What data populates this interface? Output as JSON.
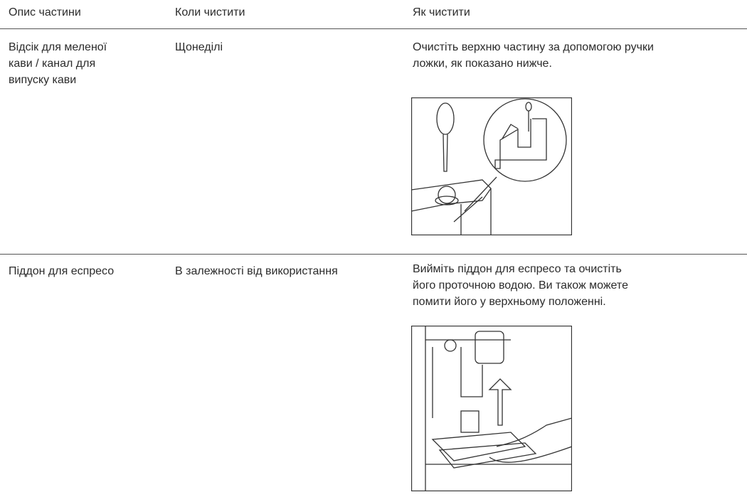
{
  "table": {
    "header": [
      "Опис частини",
      "Коли чистити",
      "Як чистити"
    ],
    "rows": [
      {
        "part": [
          "Відсік для меленої",
          "кави / канал для",
          "випуску кави"
        ],
        "when": "Щонеділі",
        "how": [
          "Очистіть верхню частину за допомогою ручки",
          "ложки, як показано нижче."
        ]
      },
      {
        "part": [
          "Піддон для еспресо"
        ],
        "when": "В залежності від використання",
        "how": [
          "Вийміть піддон для еспресо та очистіть",
          "його проточною водою. Ви також можете",
          "помити його у верхньому положенні."
        ]
      }
    ]
  }
}
